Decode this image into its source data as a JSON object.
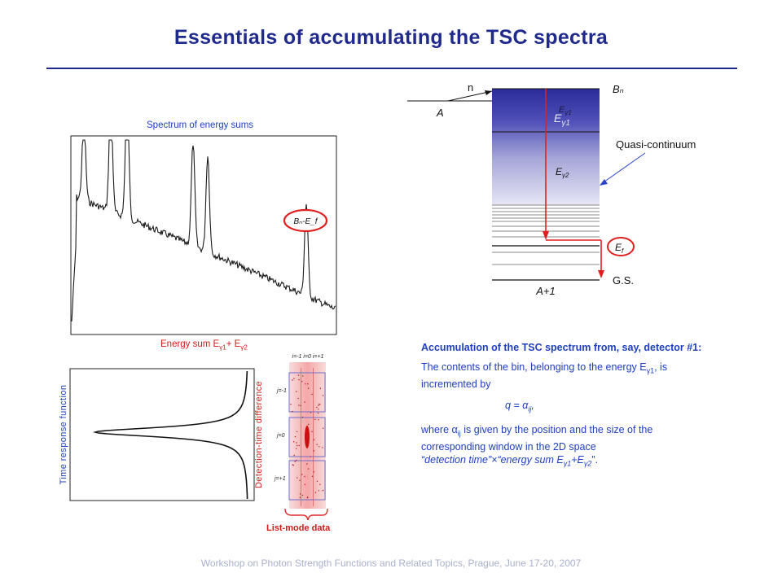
{
  "title": "Essentials of accumulating the TSC spectra",
  "spectrum": {
    "caption": "Spectrum of energy sums",
    "peak_label": "Bₙ-E_f",
    "xaxis_label": "Energy sum E",
    "xaxis_sub1": "γ1",
    "xaxis_mid": "+ E",
    "xaxis_sub2": "γ2"
  },
  "time_response": {
    "label": "Time response function"
  },
  "detection": {
    "label": "Detection-time difference",
    "top_labels": "i=-1 i=0 i=+1",
    "row_labels": [
      "j=-1",
      "j=0",
      "j=+1"
    ],
    "list_mode_label": "List-mode data"
  },
  "level_scheme": {
    "n_label": "n",
    "A_label": "A",
    "Bn_label": "Bₙ",
    "Eg1_top": "E",
    "Eg1_sub": "γ1",
    "Eg1_big": "E",
    "Eg1_big_sub": "γ1",
    "Eg2": "E",
    "Eg2_sub": "γ2",
    "quasi_label": "Quasi-continuum",
    "Ef_label": "E",
    "Ef_sub": "f",
    "gs_label": "G.S.",
    "A1_label": "A+1"
  },
  "accumulation": {
    "heading": "Accumulation of the TSC spectrum from, say,  detector #1:",
    "para1_pre": "The contents of the bin, belonging to the energy E",
    "para1_sub": "γ1",
    "para1_post": ", is incremented by",
    "formula": "q = α",
    "formula_sub": "ij",
    "formula_post": ",",
    "para2_pre": "where α",
    "para2_sub": "ij",
    "para2_post": " is given by the position and the size of the corresponding window in the 2D space",
    "para2_quote": "“detection time”×“energy sum E",
    "para2_sub2": "γ1",
    "para2_plus": "+E",
    "para2_sub3": "γ2",
    "para2_end": "”."
  },
  "footer": "Workshop on Photon Strength Functions and Related Topics, Prague,  June 17-20, 2007"
}
